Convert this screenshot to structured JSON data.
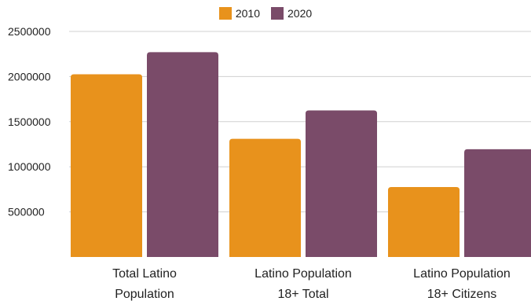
{
  "chart_data": {
    "type": "bar",
    "categories": [
      [
        "Total Latino",
        "Population"
      ],
      [
        "Latino Population",
        "18+ Total"
      ],
      [
        "Latino Population",
        "18+ Citizens"
      ]
    ],
    "series": [
      {
        "name": "2010",
        "color": "#e8921c",
        "values": [
          2025000,
          1310000,
          775000
        ]
      },
      {
        "name": "2020",
        "color": "#7a4b69",
        "values": [
          2270000,
          1625000,
          1195000
        ]
      }
    ],
    "y_ticks": [
      "2500000",
      "2000000",
      "1500000",
      "1000000",
      "500000"
    ],
    "ylim": [
      0,
      2500000
    ],
    "grid": true,
    "legend_position": "top-center"
  }
}
